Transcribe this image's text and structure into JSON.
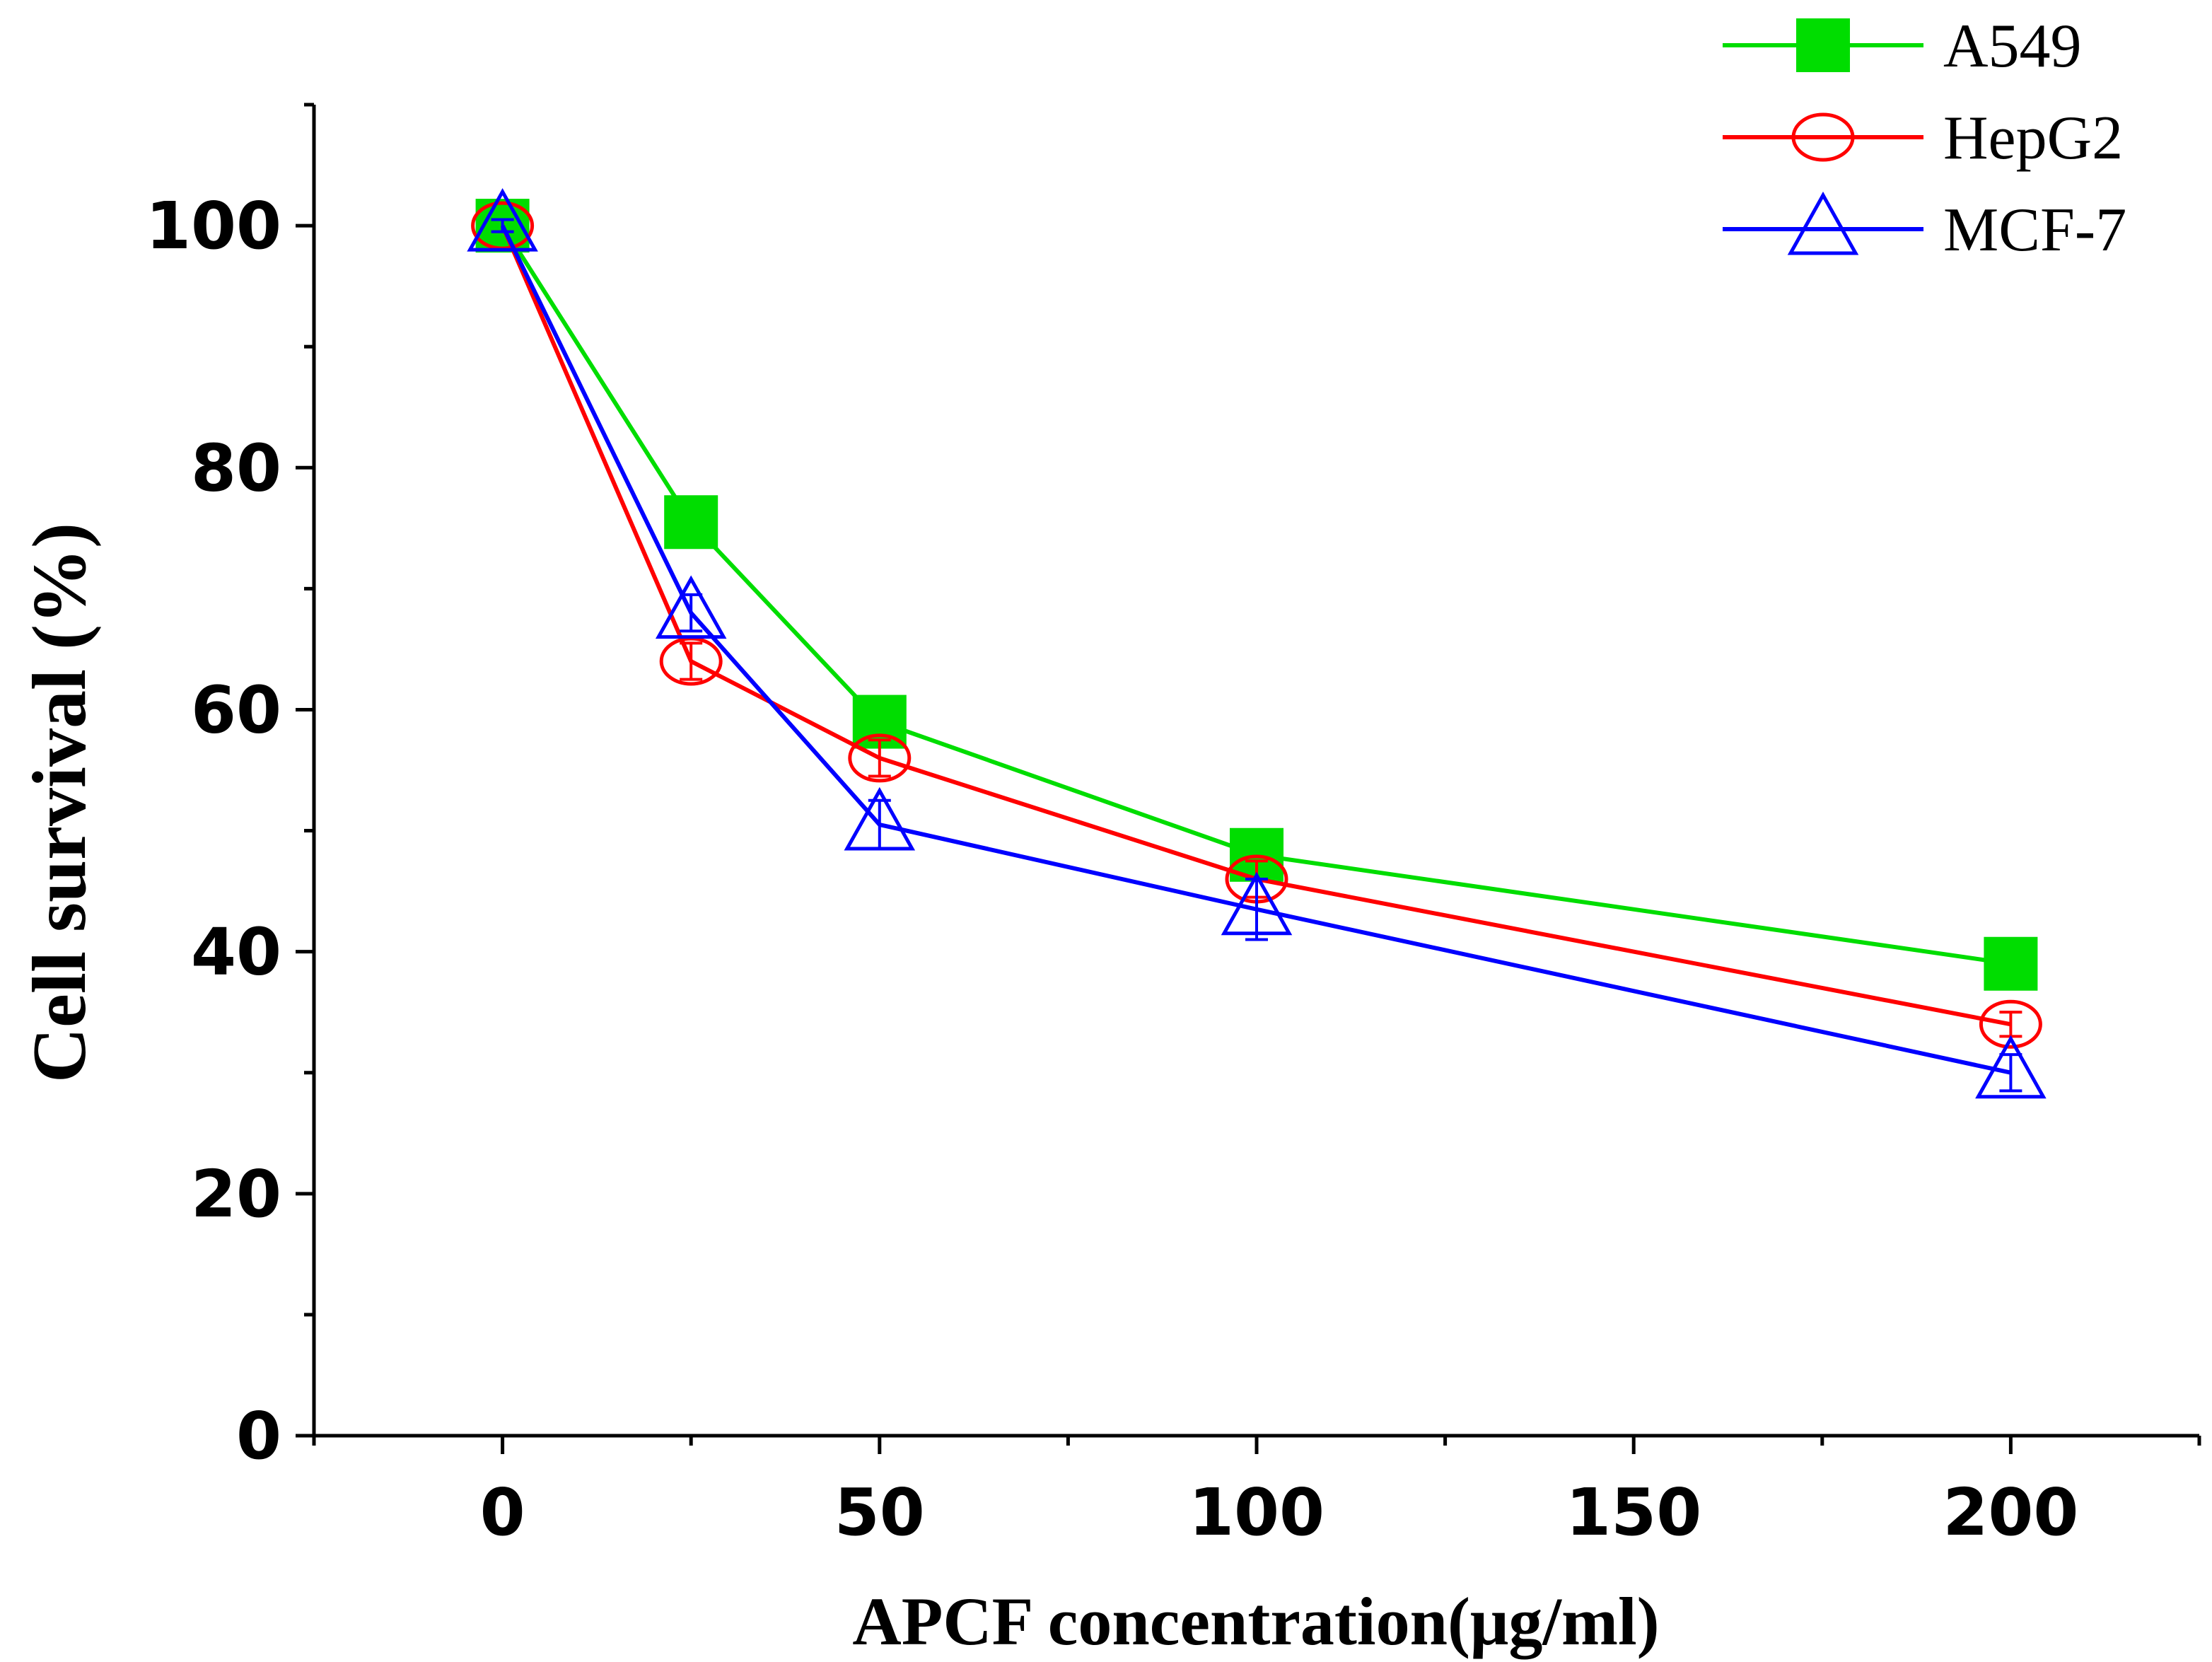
{
  "chart_data": {
    "type": "line",
    "title": "",
    "xlabel": "APCF concentration(μg/ml)",
    "ylabel": "Cell survival (%)",
    "x_tick_values": [
      0,
      50,
      100,
      150,
      200
    ],
    "x_tick_labels": [
      "0",
      "50",
      "100",
      "150",
      "200"
    ],
    "y_tick_values": [
      0,
      20,
      40,
      60,
      80,
      100
    ],
    "y_tick_labels": [
      "0",
      "20",
      "40",
      "60",
      "80",
      "100"
    ],
    "xlim": [
      -25,
      225
    ],
    "ylim": [
      0,
      110
    ],
    "grid": false,
    "legend_position": "top-right",
    "x": [
      0,
      25,
      50,
      100,
      200
    ],
    "series": [
      {
        "name": "A549",
        "marker": "filled-square",
        "color": "#00dd00",
        "values": [
          100,
          75.5,
          59,
          48,
          39
        ],
        "errors": [
          0.5,
          2,
          1.5,
          1.5,
          1
        ]
      },
      {
        "name": "HepG2",
        "marker": "open-circle",
        "color": "#ff0000",
        "values": [
          100,
          64,
          56,
          46,
          34
        ],
        "errors": [
          0.5,
          1.5,
          1.5,
          1.5,
          1
        ]
      },
      {
        "name": "MCF-7",
        "marker": "open-triangle",
        "color": "#0000ff",
        "values": [
          100,
          68,
          50.5,
          43.5,
          30
        ],
        "errors": [
          0.5,
          1.5,
          2,
          2.5,
          1.5
        ]
      }
    ]
  }
}
